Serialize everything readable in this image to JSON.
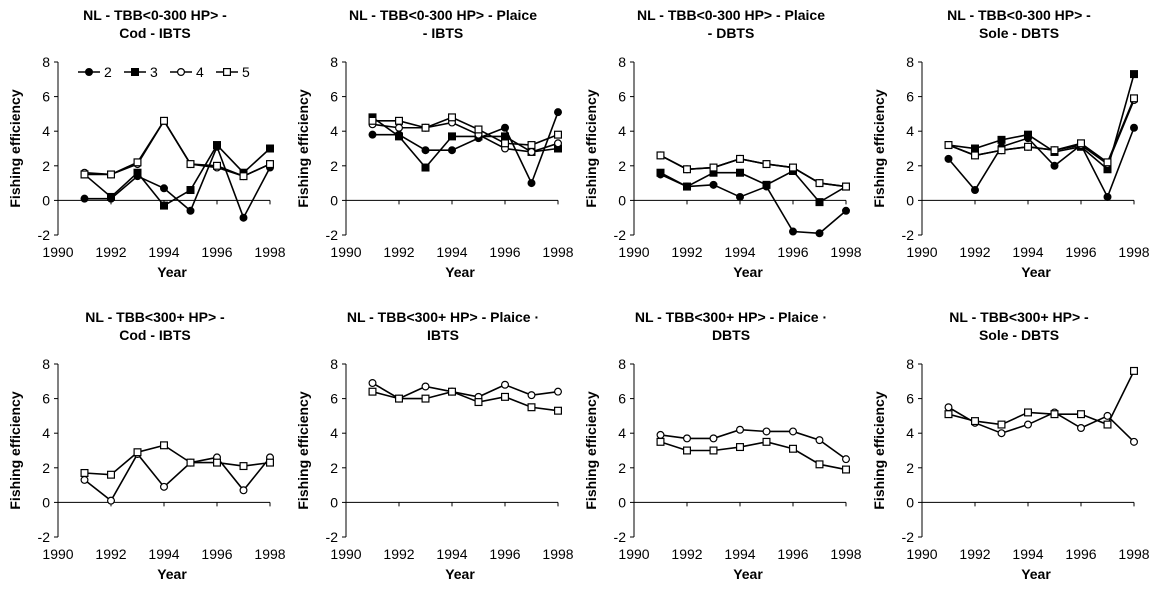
{
  "figure": {
    "x_ticks": [
      "1990",
      "1992",
      "1994",
      "1996",
      "1998"
    ],
    "y_ticks": [
      "-2",
      "0",
      "2",
      "4",
      "6",
      "8"
    ],
    "xlabel": "Year",
    "ylabel": "Fishing efficiency"
  },
  "chart_data": [
    {
      "type": "line",
      "title_lines": [
        "NL - TBB<0-300 HP> -",
        "Cod - IBTS"
      ],
      "x": [
        1991,
        1992,
        1993,
        1994,
        1995,
        1996,
        1997,
        1998
      ],
      "xlim": [
        1990,
        1998
      ],
      "ylim": [
        -2,
        8
      ],
      "legend": true,
      "series": [
        {
          "name": "2",
          "marker": "circle-filled",
          "values": [
            0.1,
            0.1,
            1.4,
            0.7,
            -0.6,
            3.1,
            -1.0,
            1.9
          ]
        },
        {
          "name": "3",
          "marker": "square-filled",
          "values": [
            1.5,
            0.2,
            1.6,
            -0.3,
            0.6,
            3.2,
            1.6,
            3.0
          ]
        },
        {
          "name": "4",
          "marker": "circle-open",
          "values": [
            1.6,
            1.5,
            2.1,
            4.6,
            2.1,
            1.9,
            1.4,
            2.1
          ]
        },
        {
          "name": "5",
          "marker": "square-open",
          "values": [
            1.5,
            1.5,
            2.2,
            4.6,
            2.1,
            2.0,
            1.4,
            2.1
          ]
        }
      ]
    },
    {
      "type": "line",
      "title_lines": [
        "NL - TBB<0-300 HP> - Plaice",
        "- IBTS"
      ],
      "x": [
        1991,
        1992,
        1993,
        1994,
        1995,
        1996,
        1997,
        1998
      ],
      "xlim": [
        1990,
        1998
      ],
      "ylim": [
        -2,
        8
      ],
      "series": [
        {
          "name": "2",
          "marker": "circle-filled",
          "values": [
            3.8,
            3.8,
            2.9,
            2.9,
            3.6,
            4.2,
            1.0,
            5.1
          ]
        },
        {
          "name": "3",
          "marker": "square-filled",
          "values": [
            4.8,
            3.7,
            1.9,
            3.7,
            3.7,
            3.7,
            2.8,
            3.0
          ]
        },
        {
          "name": "4",
          "marker": "circle-open",
          "values": [
            4.4,
            4.2,
            4.2,
            4.5,
            3.8,
            3.0,
            2.8,
            3.3
          ]
        },
        {
          "name": "5",
          "marker": "square-open",
          "values": [
            4.6,
            4.6,
            4.2,
            4.8,
            4.1,
            3.3,
            3.2,
            3.8
          ]
        }
      ]
    },
    {
      "type": "line",
      "title_lines": [
        "NL - TBB<0-300 HP> - Plaice",
        "- DBTS"
      ],
      "x": [
        1991,
        1992,
        1993,
        1994,
        1995,
        1996,
        1997,
        1998
      ],
      "xlim": [
        1990,
        1998
      ],
      "ylim": [
        -2,
        8
      ],
      "series": [
        {
          "name": "2",
          "marker": "circle-filled",
          "values": [
            1.5,
            0.8,
            0.9,
            0.2,
            0.8,
            -1.8,
            -1.9,
            -0.6
          ]
        },
        {
          "name": "3",
          "marker": "square-filled",
          "values": [
            1.6,
            0.8,
            1.6,
            1.6,
            0.9,
            1.7,
            -0.1,
            0.8
          ]
        },
        {
          "name": "4",
          "marker": "circle-open",
          "values": [
            2.6,
            1.8,
            1.9,
            2.4,
            2.1,
            1.9,
            1.0,
            0.8
          ]
        },
        {
          "name": "5",
          "marker": "square-open",
          "values": [
            2.6,
            1.8,
            1.9,
            2.4,
            2.1,
            1.9,
            1.0,
            0.8
          ]
        }
      ]
    },
    {
      "type": "line",
      "title_lines": [
        "NL - TBB<0-300 HP> -",
        "Sole - DBTS"
      ],
      "x": [
        1991,
        1992,
        1993,
        1994,
        1995,
        1996,
        1997,
        1998
      ],
      "xlim": [
        1990,
        1998
      ],
      "ylim": [
        -2,
        8
      ],
      "series": [
        {
          "name": "2",
          "marker": "circle-filled",
          "values": [
            2.4,
            0.6,
            3.1,
            3.6,
            2.0,
            3.2,
            0.2,
            4.2
          ]
        },
        {
          "name": "3",
          "marker": "square-filled",
          "values": [
            3.2,
            3.0,
            3.5,
            3.8,
            2.8,
            3.1,
            1.8,
            7.3
          ]
        },
        {
          "name": "4",
          "marker": "circle-open",
          "values": [
            3.2,
            2.6,
            2.9,
            3.1,
            2.9,
            3.2,
            2.1,
            5.8
          ]
        },
        {
          "name": "5",
          "marker": "square-open",
          "values": [
            3.2,
            2.6,
            2.9,
            3.1,
            2.9,
            3.3,
            2.2,
            5.9
          ]
        }
      ]
    },
    {
      "type": "line",
      "title_lines": [
        "NL - TBB<300+ HP> -",
        "Cod - IBTS"
      ],
      "x": [
        1991,
        1992,
        1993,
        1994,
        1995,
        1996,
        1997,
        1998
      ],
      "xlim": [
        1990,
        1998
      ],
      "ylim": [
        -2,
        8
      ],
      "series": [
        {
          "name": "4",
          "marker": "circle-open",
          "values": [
            1.3,
            0.1,
            2.8,
            0.9,
            2.3,
            2.6,
            0.7,
            2.6
          ]
        },
        {
          "name": "5",
          "marker": "square-open",
          "values": [
            1.7,
            1.6,
            2.9,
            3.3,
            2.3,
            2.3,
            2.1,
            2.3
          ]
        }
      ]
    },
    {
      "type": "line",
      "title_lines": [
        "NL - TBB<300+ HP> - Plaice ·",
        "IBTS"
      ],
      "x": [
        1991,
        1992,
        1993,
        1994,
        1995,
        1996,
        1997,
        1998
      ],
      "xlim": [
        1990,
        1998
      ],
      "ylim": [
        -2,
        8
      ],
      "series": [
        {
          "name": "4",
          "marker": "circle-open",
          "values": [
            6.9,
            6.0,
            6.7,
            6.4,
            6.1,
            6.8,
            6.2,
            6.4
          ]
        },
        {
          "name": "5",
          "marker": "square-open",
          "values": [
            6.4,
            6.0,
            6.0,
            6.4,
            5.8,
            6.1,
            5.5,
            5.3
          ]
        }
      ]
    },
    {
      "type": "line",
      "title_lines": [
        "NL - TBB<300+ HP> - Plaice ·",
        "DBTS"
      ],
      "x": [
        1991,
        1992,
        1993,
        1994,
        1995,
        1996,
        1997,
        1998
      ],
      "xlim": [
        1990,
        1998
      ],
      "ylim": [
        -2,
        8
      ],
      "series": [
        {
          "name": "4",
          "marker": "circle-open",
          "values": [
            3.9,
            3.7,
            3.7,
            4.2,
            4.1,
            4.1,
            3.6,
            2.5
          ]
        },
        {
          "name": "5",
          "marker": "square-open",
          "values": [
            3.5,
            3.0,
            3.0,
            3.2,
            3.5,
            3.1,
            2.2,
            1.9
          ]
        }
      ]
    },
    {
      "type": "line",
      "title_lines": [
        "NL - TBB<300+ HP> -",
        "Sole - DBTS"
      ],
      "x": [
        1991,
        1992,
        1993,
        1994,
        1995,
        1996,
        1997,
        1998
      ],
      "xlim": [
        1990,
        1998
      ],
      "ylim": [
        -2,
        8
      ],
      "series": [
        {
          "name": "4",
          "marker": "circle-open",
          "values": [
            5.5,
            4.6,
            4.0,
            4.5,
            5.2,
            4.3,
            5.0,
            3.5
          ]
        },
        {
          "name": "5",
          "marker": "square-open",
          "values": [
            5.1,
            4.7,
            4.5,
            5.2,
            5.1,
            5.1,
            4.5,
            7.6
          ]
        }
      ]
    }
  ]
}
